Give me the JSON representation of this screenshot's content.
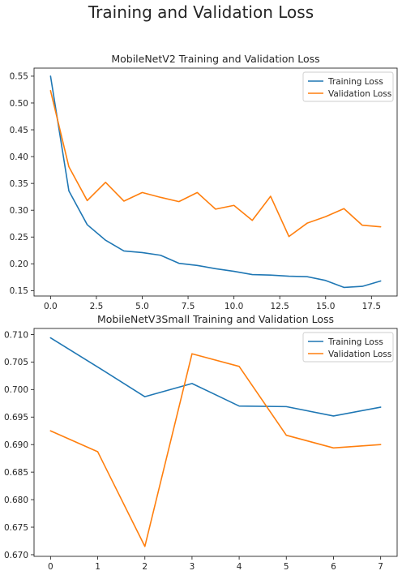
{
  "figure": {
    "suptitle": "Training and Validation Loss"
  },
  "colors": {
    "training": "#1f77b4",
    "validation": "#ff7f0e"
  },
  "chart_data": [
    {
      "type": "line",
      "title": "MobileNetV2 Training and Validation Loss",
      "xlabel": "",
      "ylabel": "",
      "xlim": [
        -0.9,
        18.9
      ],
      "ylim": [
        0.14,
        0.565
      ],
      "xticks": [
        0.0,
        2.5,
        5.0,
        7.5,
        10.0,
        12.5,
        15.0,
        17.5
      ],
      "xtick_labels": [
        "0.0",
        "2.5",
        "5.0",
        "7.5",
        "10.0",
        "12.5",
        "15.0",
        "17.5"
      ],
      "yticks": [
        0.15,
        0.2,
        0.25,
        0.3,
        0.35,
        0.4,
        0.45,
        0.5,
        0.55
      ],
      "ytick_labels": [
        "0.15",
        "0.20",
        "0.25",
        "0.30",
        "0.35",
        "0.40",
        "0.45",
        "0.50",
        "0.55"
      ],
      "legend_position": "top-right",
      "grid": false,
      "x": [
        0,
        1,
        2,
        3,
        4,
        5,
        6,
        7,
        8,
        9,
        10,
        11,
        12,
        13,
        14,
        15,
        16,
        17,
        18
      ],
      "series": [
        {
          "name": "Training Loss",
          "color": "#1f77b4",
          "values": [
            0.55,
            0.336,
            0.273,
            0.244,
            0.224,
            0.221,
            0.216,
            0.201,
            0.197,
            0.191,
            0.186,
            0.18,
            0.179,
            0.177,
            0.176,
            0.169,
            0.156,
            0.158,
            0.168
          ]
        },
        {
          "name": "Validation Loss",
          "color": "#ff7f0e",
          "values": [
            0.523,
            0.381,
            0.318,
            0.352,
            0.317,
            0.333,
            0.324,
            0.316,
            0.333,
            0.302,
            0.309,
            0.281,
            0.326,
            0.251,
            0.276,
            0.288,
            0.303,
            0.272,
            0.269
          ]
        }
      ]
    },
    {
      "type": "line",
      "title": "MobileNetV3Small Training and Validation Loss",
      "xlabel": "",
      "ylabel": "",
      "xlim": [
        -0.35,
        7.35
      ],
      "ylim": [
        0.6697,
        0.7111
      ],
      "xticks": [
        0,
        1,
        2,
        3,
        4,
        5,
        6,
        7
      ],
      "xtick_labels": [
        "0",
        "1",
        "2",
        "3",
        "4",
        "5",
        "6",
        "7"
      ],
      "yticks": [
        0.67,
        0.675,
        0.68,
        0.685,
        0.69,
        0.695,
        0.7,
        0.705,
        0.71
      ],
      "ytick_labels": [
        "0.670",
        "0.675",
        "0.680",
        "0.685",
        "0.690",
        "0.695",
        "0.700",
        "0.705",
        "0.710"
      ],
      "legend_position": "top-right",
      "grid": false,
      "x": [
        0,
        1,
        2,
        3,
        4,
        5,
        6,
        7
      ],
      "series": [
        {
          "name": "Training Loss",
          "color": "#1f77b4",
          "values": [
            0.7094,
            0.7041,
            0.6987,
            0.7011,
            0.697,
            0.6969,
            0.6952,
            0.6968
          ]
        },
        {
          "name": "Validation Loss",
          "color": "#ff7f0e",
          "values": [
            0.6925,
            0.6887,
            0.6715,
            0.7065,
            0.7042,
            0.6917,
            0.6894,
            0.69
          ]
        }
      ]
    }
  ]
}
